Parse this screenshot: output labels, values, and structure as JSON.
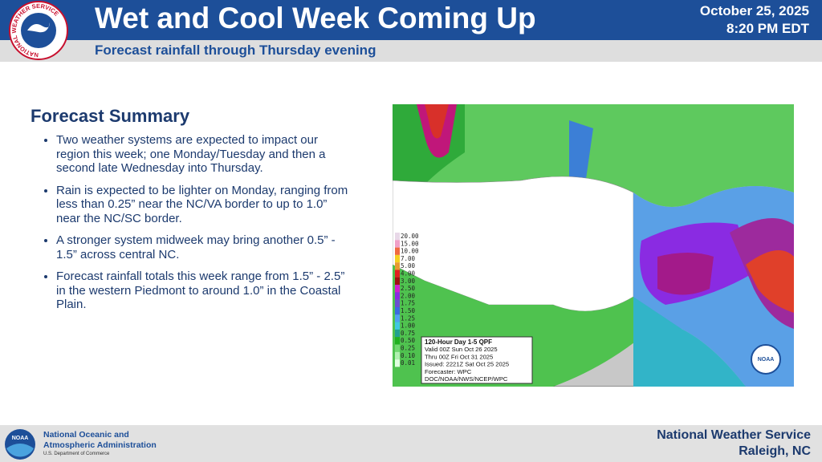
{
  "header": {
    "title": "Wet and Cool Week Coming Up",
    "subtitle": "Forecast rainfall through Thursday evening",
    "date": "October 25, 2025",
    "time": "8:20 PM EDT",
    "logo_text": "NATIONAL WEATHER SERVICE"
  },
  "summary": {
    "heading": "Forecast Summary",
    "bullets": [
      "Two weather systems are expected to impact our region this week; one Monday/Tuesday and then a second late Wednesday into Thursday.",
      "Rain is expected to be lighter on Monday, ranging from less than 0.25” near the NC/VA border to up to 1.0” near the NC/SC border.",
      "A stronger system midweek may bring another 0.5” - 1.5” across central NC.",
      "Forecast rainfall totals this week range from 1.5” - 2.5” in the western Piedmont to around 1.0” in the Coastal Plain."
    ]
  },
  "map": {
    "legend": [
      "20.00",
      "15.00",
      "10.00",
      "7.00",
      "5.00",
      "4.00",
      "3.00",
      "2.50",
      "2.00",
      "1.75",
      "1.50",
      "1.25",
      "1.00",
      "0.75",
      "0.50",
      "0.25",
      "0.10",
      "0.01"
    ],
    "info": [
      "120-Hour Day 1-5 QPF",
      "Valid 00Z Sun Oct 26 2025",
      "Thru 00Z Fri Oct 31 2025",
      "Issued: 2221Z Sat Oct 25 2025",
      "Forecaster: WPC",
      "DOC/NOAA/NWS/NCEP/WPC"
    ],
    "badge": "NOAA"
  },
  "footer": {
    "agency_line1": "National Oceanic and",
    "agency_line2": "Atmospheric Administration",
    "department": "U.S. Department of Commerce",
    "office": "National Weather Service",
    "location": "Raleigh, NC",
    "logo": "NOAA"
  }
}
